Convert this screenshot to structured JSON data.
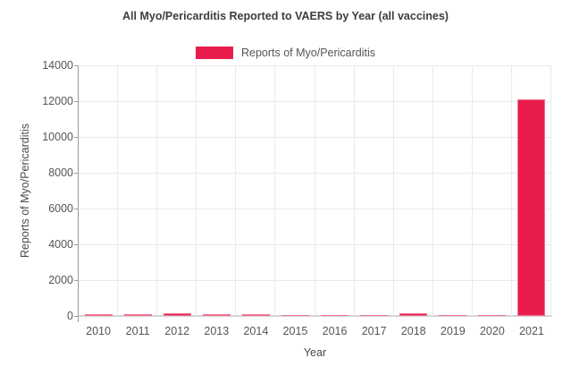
{
  "chart_data": {
    "type": "bar",
    "title": "All Myo/Pericarditis Reported to VAERS by Year (all vaccines)",
    "series_name": "Reports of Myo/Pericarditis",
    "categories": [
      "2010",
      "2011",
      "2012",
      "2013",
      "2014",
      "2015",
      "2016",
      "2017",
      "2018",
      "2019",
      "2020",
      "2021"
    ],
    "values": [
      80,
      85,
      130,
      125,
      85,
      45,
      60,
      75,
      150,
      75,
      65,
      12100
    ],
    "xlabel": "Year",
    "ylabel": "Reports of Myo/Pericarditis",
    "ylim": [
      0,
      14000
    ],
    "yticks": [
      0,
      2000,
      4000,
      6000,
      8000,
      10000,
      12000,
      14000
    ],
    "grid": true,
    "legend_position": "top-center",
    "colors": {
      "bar": "#e91d4d",
      "bar_edge": "#f2718d",
      "grid": "#eaeaea",
      "axis_line": "#9c9c9c",
      "baseline": "#d4d4d4",
      "title_text": "#3d3d3d",
      "tick_text": "#555555",
      "axis_title_text": "#4a4a4a",
      "background": "#ffffff"
    }
  }
}
